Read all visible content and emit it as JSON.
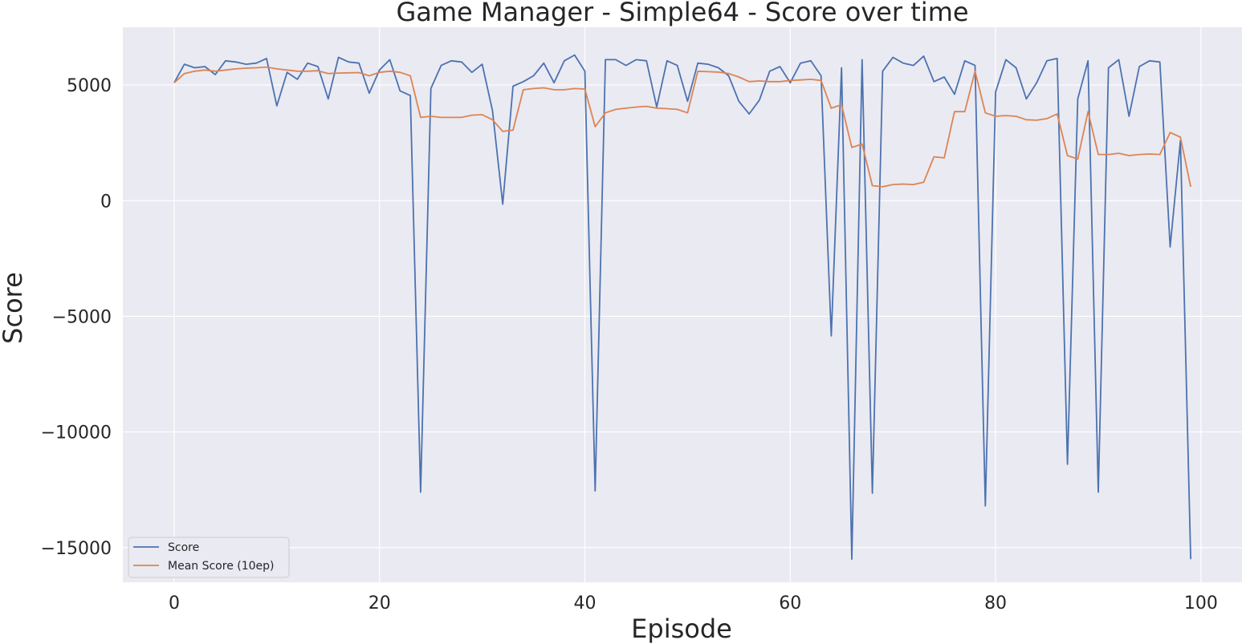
{
  "chart_data": {
    "type": "line",
    "title": "Game Manager - Simple64 - Score over time",
    "xlabel": "Episode",
    "ylabel": "Score",
    "xlim": [
      -5,
      104
    ],
    "ylim": [
      -16500,
      7500
    ],
    "xticks": [
      0,
      20,
      40,
      60,
      80,
      100
    ],
    "xtick_labels": [
      "0",
      "20",
      "40",
      "60",
      "80",
      "100"
    ],
    "yticks": [
      5000,
      0,
      -5000,
      -10000,
      -15000
    ],
    "ytick_labels": [
      "5000",
      "0",
      "−5000",
      "−10000",
      "−15000"
    ],
    "grid": true,
    "legend_position": "bottom-left",
    "colors": {
      "background": "#eaeaf2",
      "grid": "#ffffff",
      "score": "#4c72b0",
      "mean": "#dd8452"
    },
    "x": [
      0,
      1,
      2,
      3,
      4,
      5,
      6,
      7,
      8,
      9,
      10,
      11,
      12,
      13,
      14,
      15,
      16,
      17,
      18,
      19,
      20,
      21,
      22,
      23,
      24,
      25,
      26,
      27,
      28,
      29,
      30,
      31,
      32,
      33,
      34,
      35,
      36,
      37,
      38,
      39,
      40,
      41,
      42,
      43,
      44,
      45,
      46,
      47,
      48,
      49,
      50,
      51,
      52,
      53,
      54,
      55,
      56,
      57,
      58,
      59,
      60,
      61,
      62,
      63,
      64,
      65,
      66,
      67,
      68,
      69,
      70,
      71,
      72,
      73,
      74,
      75,
      76,
      77,
      78,
      79,
      80,
      81,
      82,
      83,
      84,
      85,
      86,
      87,
      88,
      89,
      90,
      91,
      92,
      93,
      94,
      95,
      96,
      97,
      98,
      99
    ],
    "series": [
      {
        "name": "Score",
        "values": [
          5100,
          5900,
          5750,
          5800,
          5450,
          6050,
          6000,
          5900,
          5950,
          6150,
          4100,
          5550,
          5250,
          5950,
          5800,
          4400,
          6200,
          6000,
          5950,
          4650,
          5650,
          6100,
          4750,
          4550,
          -12600,
          4850,
          5850,
          6050,
          6000,
          5550,
          5900,
          3900,
          -150,
          4950,
          5150,
          5400,
          5950,
          5100,
          6050,
          6300,
          5600,
          -12550,
          6100,
          6100,
          5850,
          6100,
          6050,
          4050,
          6050,
          5850,
          4300,
          5950,
          5900,
          5750,
          5400,
          4300,
          3750,
          4350,
          5600,
          5800,
          5100,
          5950,
          6050,
          5400,
          -5850,
          5750,
          -15500,
          6100,
          -12650,
          5600,
          6200,
          5950,
          5850,
          6250,
          5150,
          5350,
          4600,
          6050,
          5850,
          -13200,
          4700,
          6100,
          5750,
          4400,
          5100,
          6050,
          6150,
          -11400,
          4400,
          6050,
          -12600,
          5750,
          6100,
          3650,
          5800,
          6050,
          6000,
          -2000,
          2600,
          -15500
        ]
      },
      {
        "name": "Mean Score (10ep)",
        "values": [
          5100,
          5500,
          5600,
          5650,
          5600,
          5650,
          5700,
          5730,
          5750,
          5780,
          5700,
          5650,
          5600,
          5600,
          5620,
          5500,
          5520,
          5530,
          5540,
          5400,
          5550,
          5600,
          5550,
          5400,
          3600,
          3650,
          3600,
          3600,
          3600,
          3700,
          3720,
          3500,
          3000,
          3050,
          4800,
          4850,
          4880,
          4800,
          4800,
          4850,
          4830,
          3200,
          3800,
          3950,
          4000,
          4050,
          4080,
          4000,
          3980,
          3950,
          3800,
          5600,
          5580,
          5560,
          5500,
          5350,
          5150,
          5180,
          5150,
          5150,
          5200,
          5220,
          5250,
          5200,
          4000,
          4150,
          2300,
          2450,
          650,
          600,
          700,
          720,
          700,
          800,
          1900,
          1850,
          3850,
          3850,
          5600,
          3800,
          3650,
          3680,
          3650,
          3500,
          3480,
          3550,
          3750,
          1950,
          1800,
          3850,
          2000,
          2000,
          2050,
          1950,
          2000,
          2020,
          2000,
          2950,
          2750,
          600
        ]
      }
    ]
  }
}
